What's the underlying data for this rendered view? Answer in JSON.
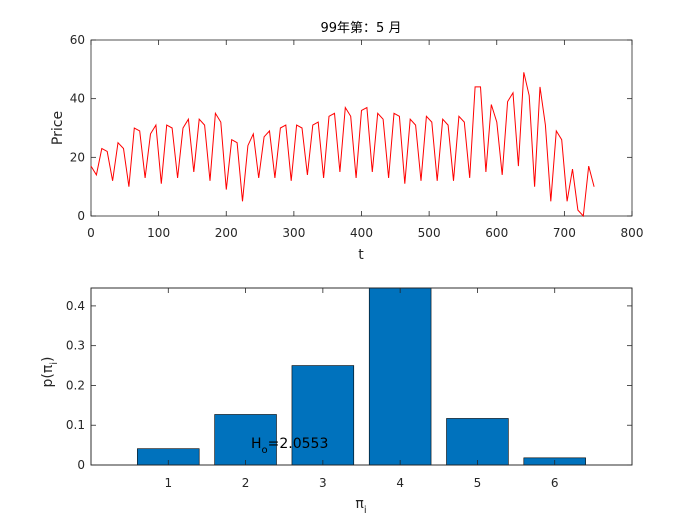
{
  "chart_data": [
    {
      "type": "line",
      "title": "99年第：5 月",
      "xlabel": "t",
      "ylabel": "Price",
      "xlim": [
        0,
        800
      ],
      "ylim": [
        0,
        60
      ],
      "xticks": [
        0,
        100,
        200,
        300,
        400,
        500,
        600,
        700,
        800
      ],
      "yticks": [
        0,
        20,
        40,
        60
      ],
      "line_color": "#ff0000",
      "series": [
        {
          "x": [
            0,
            8,
            16,
            24,
            32,
            40,
            48,
            56,
            64,
            72,
            80,
            88,
            96,
            104,
            112,
            120,
            128,
            136,
            144,
            152,
            160,
            168,
            176,
            184,
            192,
            200,
            208,
            216,
            224,
            232,
            240,
            248,
            256,
            264,
            272,
            280,
            288,
            296,
            304,
            312,
            320,
            328,
            336,
            344,
            352,
            360,
            368,
            376,
            384,
            392,
            400,
            408,
            416,
            424,
            432,
            440,
            448,
            456,
            464,
            472,
            480,
            488,
            496,
            504,
            512,
            520,
            528,
            536,
            544,
            552,
            560,
            568,
            576,
            584,
            592,
            600,
            608,
            616,
            624,
            632,
            640,
            648,
            656,
            664,
            672,
            680,
            688,
            696,
            704,
            712,
            720,
            728,
            736,
            744
          ],
          "y": [
            17,
            14,
            23,
            22,
            12,
            25,
            23,
            10,
            30,
            29,
            13,
            28,
            31,
            11,
            31,
            30,
            13,
            30,
            33,
            15,
            33,
            31,
            12,
            35,
            32,
            9,
            26,
            25,
            5,
            24,
            28,
            13,
            27,
            29,
            13,
            30,
            31,
            12,
            31,
            30,
            14,
            31,
            32,
            13,
            34,
            35,
            15,
            37,
            34,
            13,
            36,
            37,
            15,
            35,
            33,
            13,
            35,
            34,
            11,
            33,
            31,
            12,
            34,
            32,
            12,
            33,
            31,
            12,
            34,
            32,
            13,
            44,
            44,
            15,
            38,
            32,
            14,
            39,
            42,
            17,
            49,
            41,
            10,
            44,
            31,
            5,
            29,
            26,
            5,
            16,
            2,
            0,
            17,
            10
          ]
        }
      ]
    },
    {
      "type": "bar",
      "xlabel": "π_i",
      "ylabel": "p(π_i)",
      "categories": [
        "1",
        "2",
        "3",
        "4",
        "5",
        "6"
      ],
      "values": [
        0.041,
        0.127,
        0.25,
        0.445,
        0.117,
        0.018
      ],
      "xlim": [
        0,
        7
      ],
      "ylim": [
        0,
        0.445
      ],
      "yticks": [
        0,
        0.1,
        0.2,
        0.3,
        0.4
      ],
      "bar_color": "#0072bd",
      "annotation": {
        "main": "H",
        "sub": "o",
        "rest": "=2.0553"
      }
    }
  ]
}
